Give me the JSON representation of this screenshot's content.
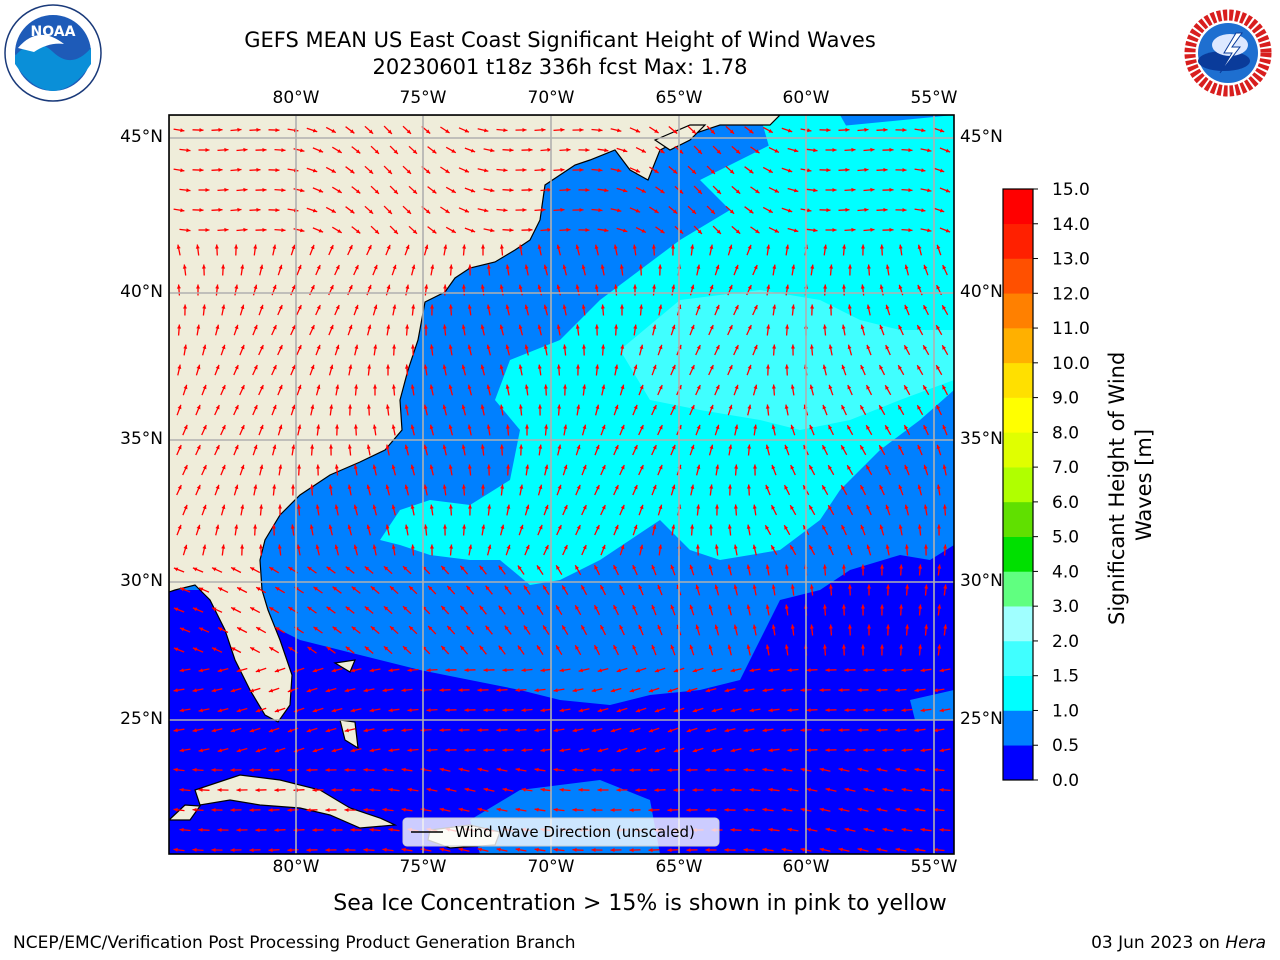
{
  "title": {
    "line1": "GEFS MEAN US East Coast Significant Height of Wind Waves",
    "line2": "20230601 t18z 336h fcst   Max: 1.78"
  },
  "map": {
    "lon_ticks": [
      "80°W",
      "75°W",
      "70°W",
      "65°W",
      "60°W",
      "55°W"
    ],
    "lat_ticks": [
      "45°N",
      "40°N",
      "35°N",
      "30°N",
      "25°N"
    ],
    "extent": {
      "lon": [
        -85,
        -54.5
      ],
      "lat": [
        20.3,
        45.8
      ]
    },
    "colors": {
      "land": "#efedda",
      "arrow": "#ff0000",
      "grid": "#b0b0b0"
    },
    "legend": "Wind Wave Direction (unscaled)"
  },
  "colorbar": {
    "label": "Significant Height of Wind Waves [m]",
    "levels": [
      "0.0",
      "0.5",
      "1.0",
      "1.5",
      "2.0",
      "3.0",
      "4.0",
      "5.0",
      "6.0",
      "7.0",
      "8.0",
      "9.0",
      "10.0",
      "11.0",
      "12.0",
      "13.0",
      "14.0",
      "15.0"
    ],
    "colors": [
      "#0000ff",
      "#0080ff",
      "#00ffff",
      "#40ffff",
      "#a0ffff",
      "#60ff80",
      "#00e000",
      "#60e000",
      "#b0ff00",
      "#e0ff00",
      "#ffff00",
      "#ffe000",
      "#ffb000",
      "#ff8000",
      "#ff5000",
      "#ff2000",
      "#ff0000"
    ]
  },
  "notes": {
    "sea_ice": "Sea Ice Concentration > 15% is shown in pink to yellow",
    "credit": "NCEP/EMC/Verification Post Processing Product Generation Branch",
    "date": "03 Jun 2023 on ",
    "host": "Hera"
  },
  "logos": {
    "noaa": "NOAA",
    "nws": "NATIONAL WEATHER SERVICE"
  }
}
